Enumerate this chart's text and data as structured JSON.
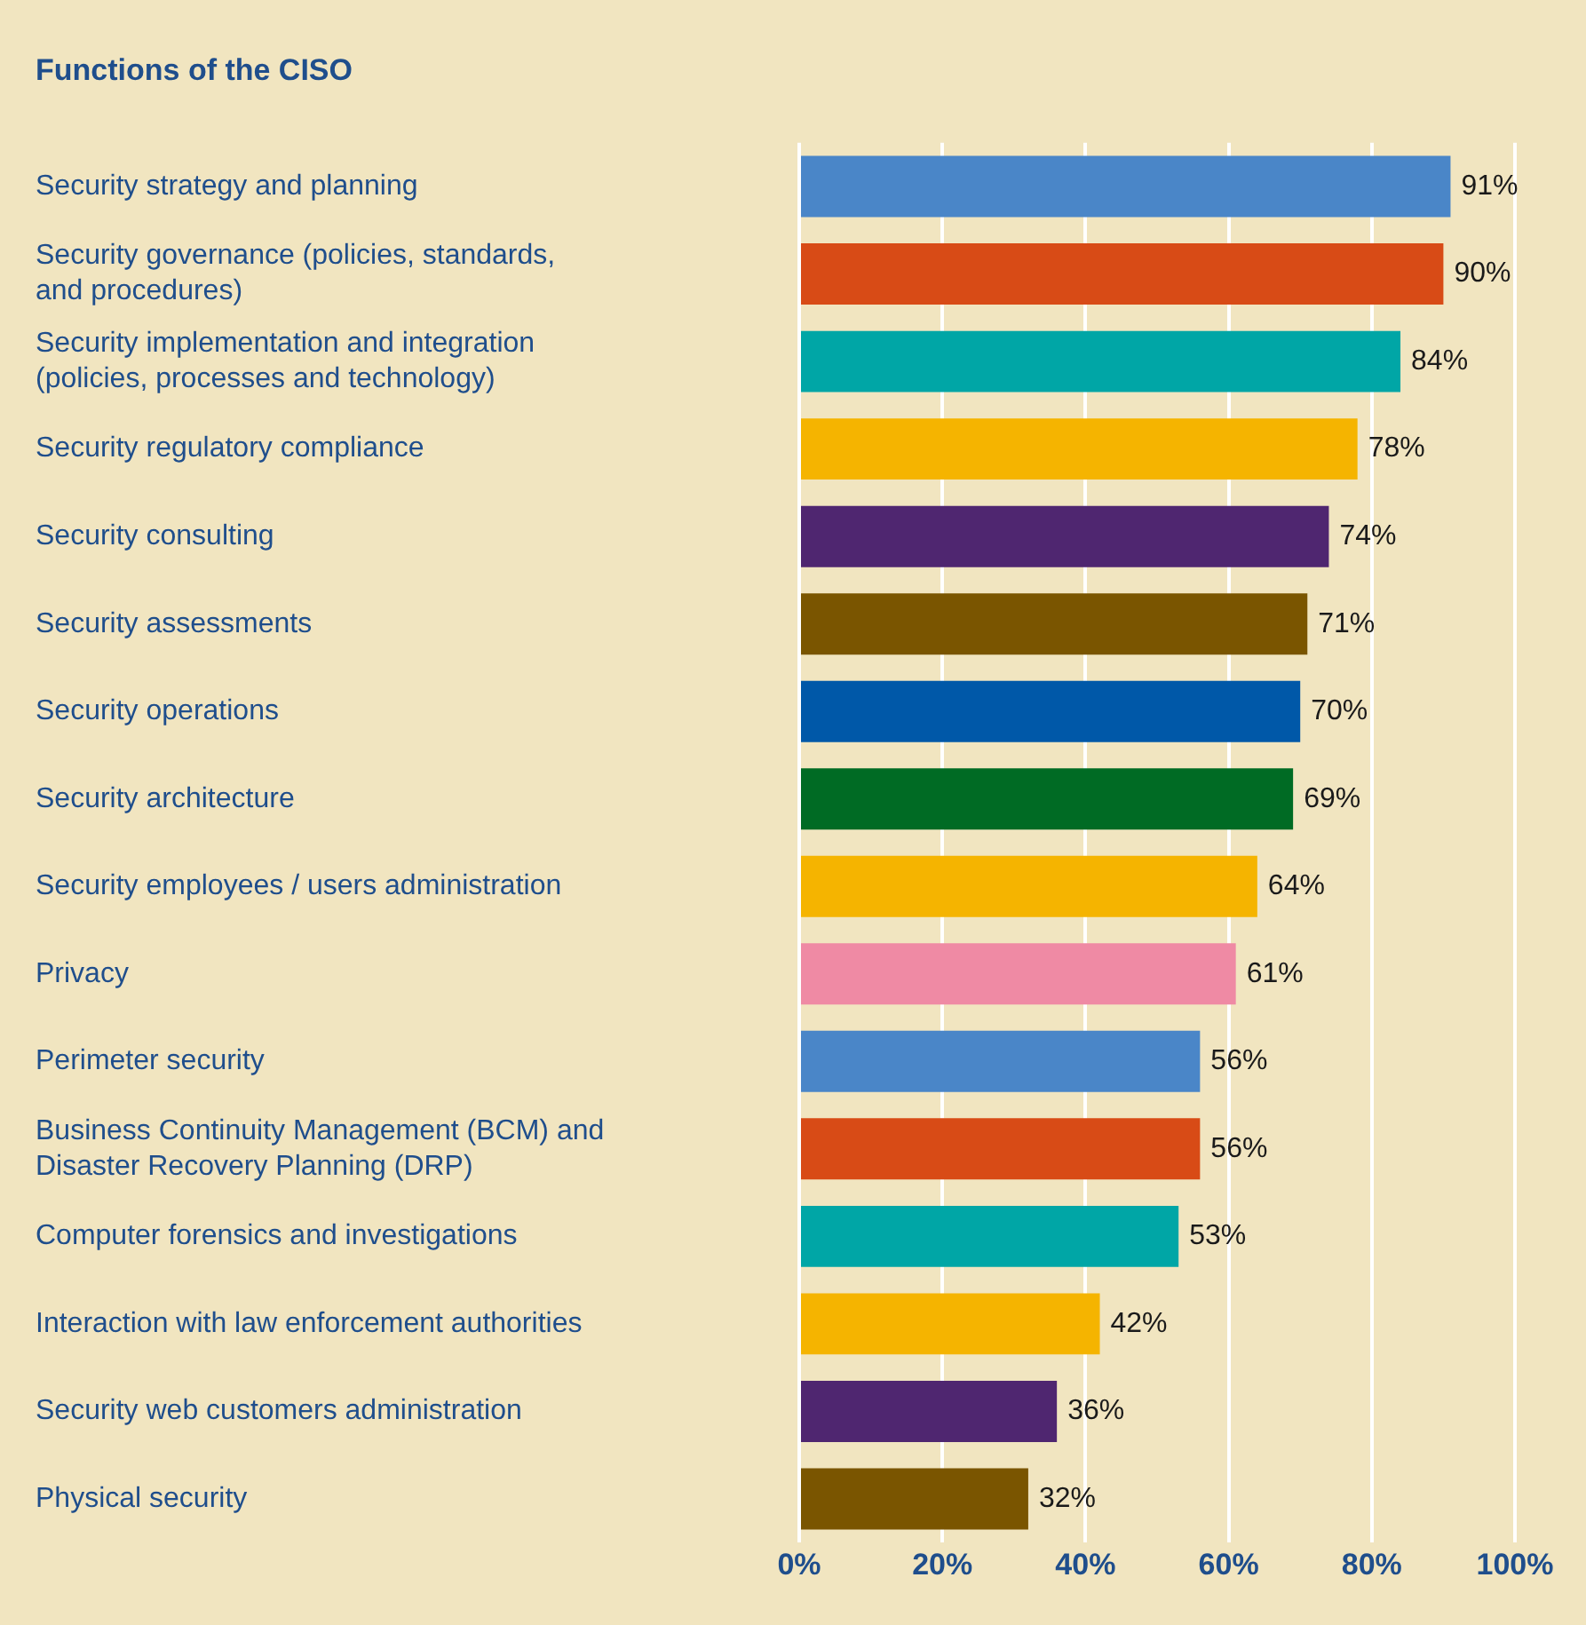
{
  "chart_data": {
    "type": "bar",
    "orientation": "horizontal",
    "title": "Functions of the CISO",
    "categories": [
      "Security strategy and planning",
      "Security governance (policies, standards,\nand procedures)",
      "Security implementation and integration\n(policies, processes and technology)",
      "Security regulatory compliance",
      "Security consulting",
      "Security assessments",
      "Security operations",
      "Security architecture",
      "Security employees / users administration",
      "Privacy",
      "Perimeter security",
      "Business Continuity Management (BCM) and\nDisaster Recovery Planning (DRP)",
      "Computer forensics and investigations",
      "Interaction with law enforcement authorities",
      "Security web customers administration",
      "Physical security"
    ],
    "values": [
      91,
      90,
      84,
      78,
      74,
      71,
      70,
      69,
      64,
      61,
      56,
      56,
      53,
      42,
      36,
      32
    ],
    "value_labels": [
      "91%",
      "90%",
      "84%",
      "78%",
      "74%",
      "71%",
      "70%",
      "69%",
      "64%",
      "61%",
      "56%",
      "56%",
      "53%",
      "42%",
      "36%",
      "32%"
    ],
    "colors": [
      "#4a86c8",
      "#d84b16",
      "#00a6a6",
      "#f5b400",
      "#4f2670",
      "#7a5500",
      "#0058a8",
      "#006b24",
      "#f5b400",
      "#ef8aa4",
      "#4a86c8",
      "#d84b16",
      "#00a6a6",
      "#f5b400",
      "#4f2670",
      "#7a5500"
    ],
    "xlim": [
      0,
      100
    ],
    "xticks": [
      {
        "value": 0,
        "label": "0%"
      },
      {
        "value": 20,
        "label": "20%"
      },
      {
        "value": 40,
        "label": "40%"
      },
      {
        "value": 60,
        "label": "60%"
      },
      {
        "value": 80,
        "label": "80%"
      },
      {
        "value": 100,
        "label": "100%"
      }
    ],
    "grid": "x",
    "legend": false
  }
}
